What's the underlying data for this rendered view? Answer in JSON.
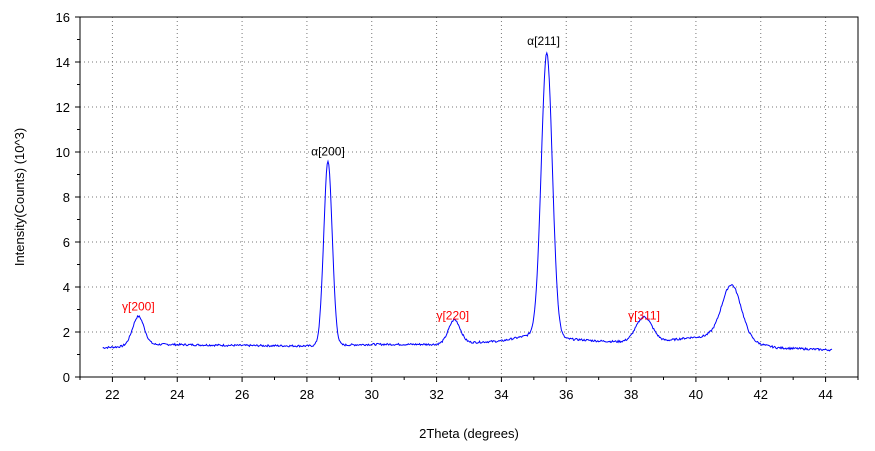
{
  "chart_data": {
    "type": "line",
    "title": "",
    "xlabel": "2Theta (degrees)",
    "ylabel": "Intensity(Counts) (10^3)",
    "xlim": [
      21,
      45
    ],
    "ylim": [
      0,
      16
    ],
    "x_ticks": [
      22,
      24,
      26,
      28,
      30,
      32,
      34,
      36,
      38,
      40,
      42,
      44
    ],
    "y_ticks": [
      0,
      2,
      4,
      6,
      8,
      10,
      12,
      14,
      16
    ],
    "grid": true,
    "series_color": "#0000ff",
    "baseline": [
      [
        21.7,
        1.3
      ],
      [
        23.5,
        1.45
      ],
      [
        26,
        1.4
      ],
      [
        28,
        1.38
      ],
      [
        30,
        1.45
      ],
      [
        32,
        1.45
      ],
      [
        34,
        1.6
      ],
      [
        35,
        1.9
      ],
      [
        36,
        1.7
      ],
      [
        37,
        1.6
      ],
      [
        38,
        1.55
      ],
      [
        39,
        1.6
      ],
      [
        39.8,
        1.75
      ],
      [
        40.4,
        1.8
      ],
      [
        41.8,
        1.5
      ],
      [
        42.5,
        1.3
      ],
      [
        44.2,
        1.2
      ]
    ],
    "peaks": [
      {
        "x": 22.8,
        "height": 1.3,
        "width": 0.18
      },
      {
        "x": 28.65,
        "height": 8.2,
        "width": 0.13
      },
      {
        "x": 32.55,
        "height": 1.05,
        "width": 0.18
      },
      {
        "x": 35.4,
        "height": 12.6,
        "width": 0.17
      },
      {
        "x": 38.4,
        "height": 1.1,
        "width": 0.25
      },
      {
        "x": 41.1,
        "height": 2.45,
        "width": 0.3
      }
    ],
    "annotations": [
      {
        "label": "γ[200]",
        "x": 22.8,
        "y": 2.95,
        "color": "#ff0000"
      },
      {
        "label": "α[200]",
        "x": 28.65,
        "y": 9.85,
        "color": "#000000"
      },
      {
        "label": "γ[220]",
        "x": 32.5,
        "y": 2.55,
        "color": "#ff0000"
      },
      {
        "label": "α[211]",
        "x": 35.3,
        "y": 14.75,
        "color": "#000000"
      },
      {
        "label": "γ[311]",
        "x": 38.4,
        "y": 2.55,
        "color": "#ff0000"
      }
    ]
  }
}
